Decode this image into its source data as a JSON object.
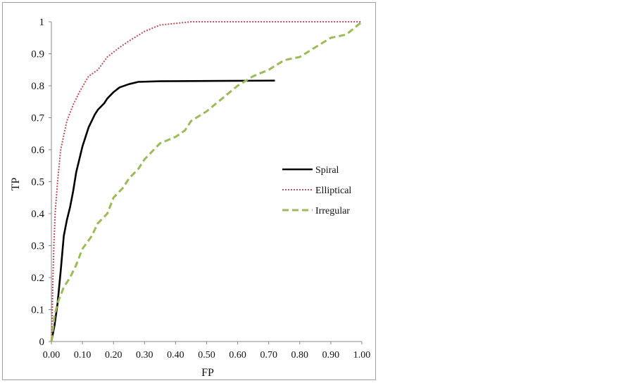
{
  "chart_data": {
    "type": "line",
    "title": "",
    "xlabel": "FP",
    "ylabel": "TP",
    "xlim": [
      0,
      1
    ],
    "ylim": [
      0,
      1
    ],
    "grid": false,
    "legend_position": "right",
    "x_ticks": [
      "0.00",
      "0.10",
      "0.20",
      "0.30",
      "0.40",
      "0.50",
      "0.60",
      "0.70",
      "0.80",
      "0.90",
      "1.00"
    ],
    "y_ticks": [
      "0",
      "0.1",
      "0.2",
      "0.3",
      "0.4",
      "0.5",
      "0.6",
      "0.7",
      "0.8",
      "0.9",
      "1"
    ],
    "series": [
      {
        "name": "Spiral",
        "color": "#000000",
        "style": "solid",
        "x": [
          0,
          0.01,
          0.02,
          0.03,
          0.04,
          0.05,
          0.06,
          0.07,
          0.08,
          0.09,
          0.1,
          0.11,
          0.12,
          0.13,
          0.14,
          0.15,
          0.17,
          0.18,
          0.2,
          0.22,
          0.25,
          0.28,
          0.35,
          0.5,
          0.72
        ],
        "y": [
          0,
          0.05,
          0.12,
          0.22,
          0.33,
          0.38,
          0.42,
          0.47,
          0.53,
          0.57,
          0.61,
          0.64,
          0.67,
          0.69,
          0.71,
          0.725,
          0.745,
          0.76,
          0.78,
          0.795,
          0.805,
          0.812,
          0.814,
          0.815,
          0.816
        ]
      },
      {
        "name": "Elliptical",
        "color": "#b5525c",
        "style": "dotted",
        "x": [
          0,
          0.003,
          0.005,
          0.008,
          0.012,
          0.02,
          0.03,
          0.05,
          0.07,
          0.09,
          0.12,
          0.15,
          0.18,
          0.22,
          0.25,
          0.3,
          0.35,
          0.45,
          1.0
        ],
        "y": [
          0,
          0.1,
          0.2,
          0.3,
          0.4,
          0.5,
          0.6,
          0.69,
          0.74,
          0.78,
          0.83,
          0.85,
          0.89,
          0.92,
          0.94,
          0.97,
          0.99,
          1.0,
          1.0
        ]
      },
      {
        "name": "Irregular",
        "color": "#9bbb59",
        "style": "dashed",
        "x": [
          0,
          0.01,
          0.02,
          0.04,
          0.06,
          0.08,
          0.1,
          0.13,
          0.15,
          0.18,
          0.2,
          0.23,
          0.25,
          0.28,
          0.3,
          0.33,
          0.35,
          0.4,
          0.43,
          0.45,
          0.5,
          0.55,
          0.6,
          0.65,
          0.7,
          0.75,
          0.8,
          0.85,
          0.9,
          0.95,
          1.0
        ],
        "y": [
          0,
          0.08,
          0.12,
          0.17,
          0.2,
          0.24,
          0.29,
          0.33,
          0.37,
          0.4,
          0.45,
          0.48,
          0.51,
          0.54,
          0.57,
          0.6,
          0.62,
          0.64,
          0.66,
          0.69,
          0.72,
          0.76,
          0.8,
          0.83,
          0.85,
          0.88,
          0.89,
          0.92,
          0.95,
          0.96,
          1.0
        ]
      }
    ]
  }
}
